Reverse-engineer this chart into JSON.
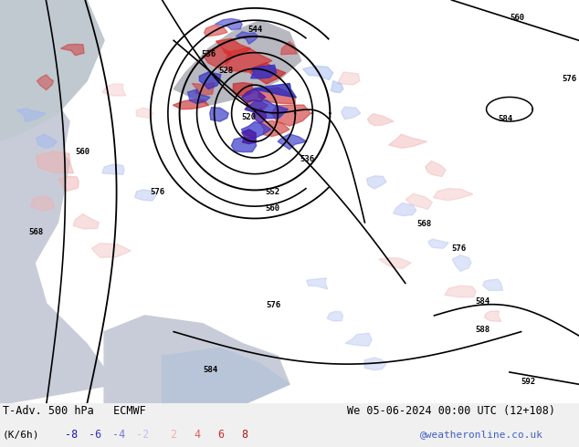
{
  "title_left": "T-Adv. 500 hPa   ECMWF",
  "title_right": "We 05-06-2024 00:00 UTC (12+108)",
  "unit_label": "(K/6h)",
  "colorbar_values": [
    -8,
    -6,
    -4,
    -2,
    2,
    4,
    6,
    8
  ],
  "website": "@weatheronline.co.uk",
  "fig_width": 6.34,
  "fig_height": 4.9,
  "dpi": 100,
  "land_color": "#c8e0b8",
  "ocean_color": "#d8d8e0",
  "sea_color": "#d0d8e8",
  "bg_color": "#ffffff",
  "legend_bg": "#f0f0f0",
  "neg_colors": [
    "#1010c0",
    "#3838c8",
    "#7878e0",
    "#c0c0f0"
  ],
  "pos_colors": [
    "#f8c0c0",
    "#e07878",
    "#c83838",
    "#c01010"
  ]
}
